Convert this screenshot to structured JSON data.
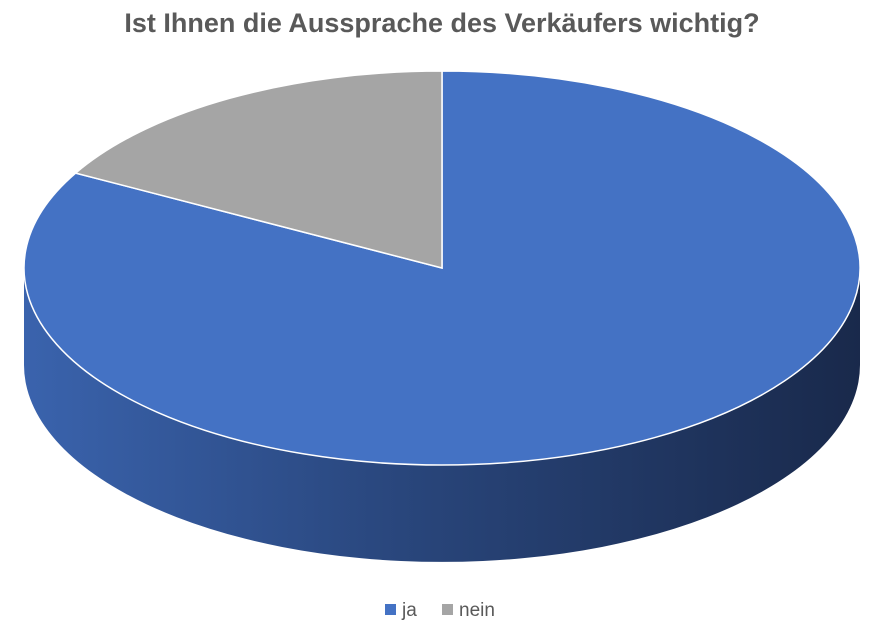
{
  "chart_data": {
    "type": "pie",
    "title": "Ist Ihnen die Aussprache des Verkäufers wichtig?",
    "categories": [
      "ja",
      "nein"
    ],
    "values": [
      83,
      17
    ],
    "colors": [
      "#4472c4",
      "#a5a5a5"
    ],
    "legend": "bottom"
  }
}
